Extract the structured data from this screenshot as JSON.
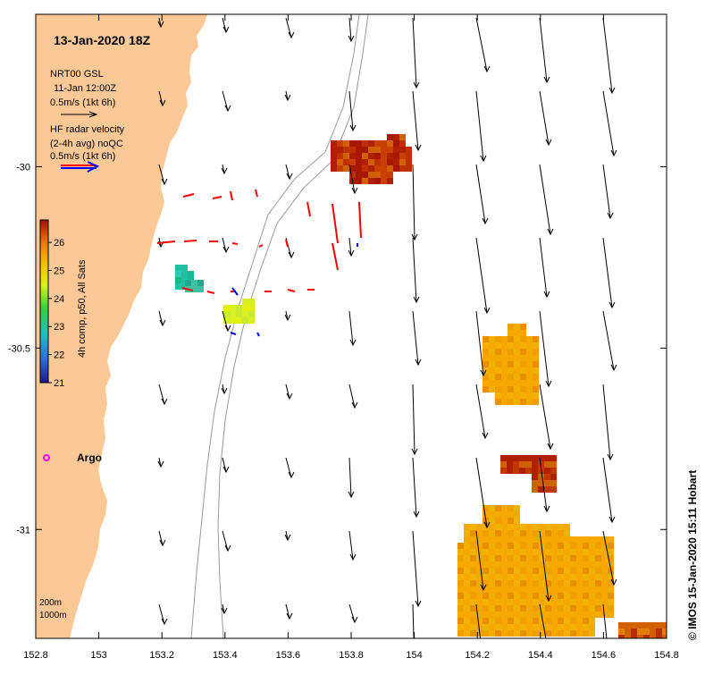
{
  "title": "13-Jan-2020 18Z",
  "legend": {
    "gsl_product": "NRT00 GSL",
    "gsl_time": "11-Jan 12:00Z",
    "gsl_scale": "0.5m/s (1kt 6h)",
    "hf_line1": "HF radar velocity",
    "hf_line2": "(2-4h avg) noQC",
    "hf_scale": "0.5m/s (1kt 6h)"
  },
  "colorbar": {
    "label": "4h comp, p50, All Sats",
    "min": 21,
    "max": 26.8,
    "ticks": [
      "21",
      "22",
      "23",
      "24",
      "25",
      "26"
    ]
  },
  "argo_label": "Argo",
  "contours": {
    "c1": "200m",
    "c2": "1000m"
  },
  "credit": "© IMOS 15-Jan-2020 15:11 Hobart",
  "axes": {
    "x_ticks": [
      "152.8",
      "153",
      "153.2",
      "153.4",
      "153.6",
      "153.8",
      "154",
      "154.2",
      "154.4",
      "154.6",
      "154.8"
    ],
    "y_ticks": [
      "-30",
      "-30.5",
      "-31"
    ],
    "xlim": [
      152.8,
      154.8
    ],
    "ylim": [
      -31.3,
      -29.58
    ]
  },
  "colors": {
    "land": "#fcc896",
    "gsl_arrow": "#000000",
    "hf_arrow": "#ff0000",
    "hf_arrow_alt": "#0000ff",
    "argo": "#ff00ff",
    "isobath": "#9a9a9a"
  }
}
